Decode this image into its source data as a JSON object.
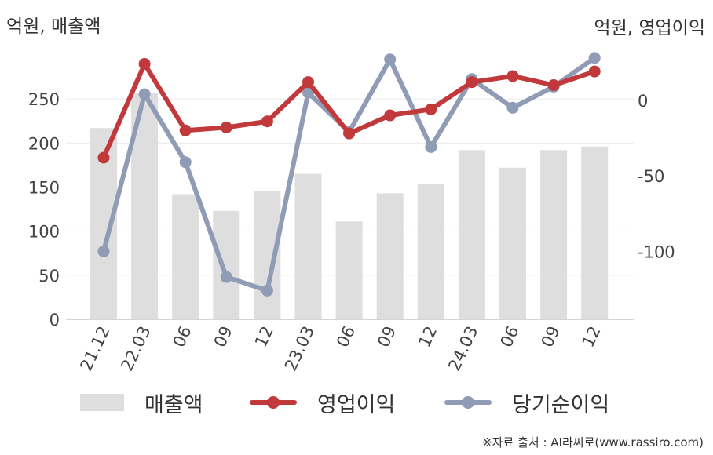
{
  "chart_data": {
    "type": "bar+line",
    "left_axis_unit": "억원, 매출액",
    "right_axis_unit": "억원, 영업이익",
    "categories": [
      "21.12",
      "22.03",
      "06",
      "09",
      "12",
      "23.03",
      "06",
      "09",
      "12",
      "24.03",
      "06",
      "09",
      "12"
    ],
    "bar_series": {
      "name": "매출액",
      "color": "#dedede",
      "axis": "left",
      "values": [
        217,
        257,
        142,
        123,
        146,
        165,
        111,
        143,
        154,
        192,
        172,
        192,
        196
      ]
    },
    "line_series": [
      {
        "name": "영업이익",
        "color": "#c1393b",
        "axis": "right",
        "values": [
          -38,
          24,
          -20,
          -18,
          -14,
          12,
          -22,
          -10,
          -6,
          12,
          16,
          10,
          19
        ]
      },
      {
        "name": "당기순이익",
        "color": "#909bb6",
        "axis": "right",
        "values": [
          -100,
          4,
          -41,
          -117,
          -126,
          5,
          -21,
          27,
          -31,
          14,
          -5,
          9,
          28
        ]
      }
    ],
    "left_ylim": [
      0,
      300
    ],
    "left_ticks": [
      0,
      50,
      100,
      150,
      200,
      250
    ],
    "right_ylim": [
      -145,
      30
    ],
    "right_ticks": [
      0,
      -50,
      -100
    ],
    "grid": true,
    "legend_position": "bottom"
  },
  "legend": {
    "sales": "매출액",
    "operating_profit": "영업이익",
    "net_income": "당기순이익"
  },
  "source": "※자료 출처 : AI라씨로(www.rassiro.com)"
}
